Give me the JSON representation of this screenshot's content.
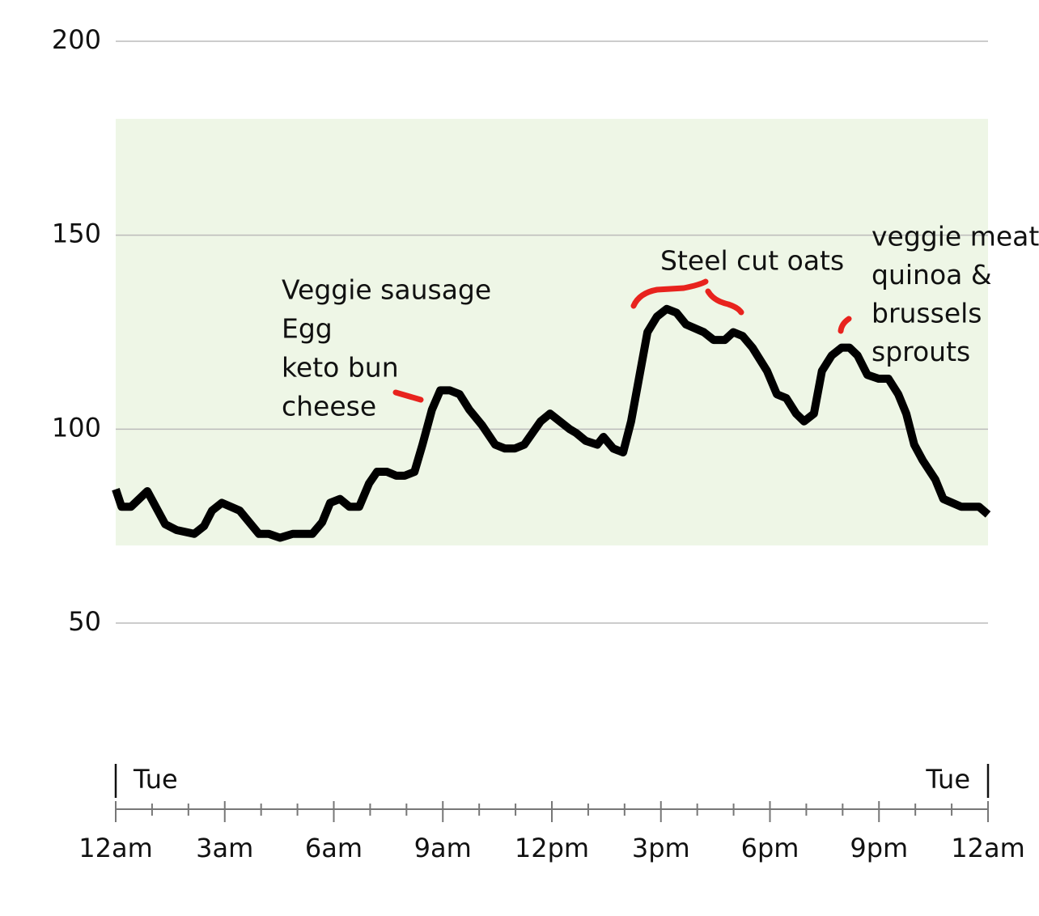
{
  "chart_data": {
    "type": "line",
    "x": [
      0,
      0.16,
      0.42,
      0.87,
      1.36,
      1.67,
      2.16,
      2.43,
      2.65,
      2.92,
      3.41,
      3.94,
      4.21,
      4.52,
      4.87,
      5.41,
      5.68,
      5.9,
      6.17,
      6.43,
      6.7,
      6.97,
      7.19,
      7.46,
      7.72,
      7.95,
      8.22,
      8.44,
      8.7,
      8.93,
      9.19,
      9.46,
      9.73,
      10.08,
      10.44,
      10.71,
      10.98,
      11.24,
      11.69,
      11.95,
      12.49,
      12.67,
      12.93,
      13.25,
      13.42,
      13.69,
      13.96,
      14.18,
      14.63,
      14.89,
      15.16,
      15.43,
      15.69,
      16.18,
      16.45,
      16.76,
      16.99,
      17.25,
      17.52,
      17.92,
      18.19,
      18.45,
      18.72,
      18.94,
      19.21,
      19.43,
      19.7,
      19.97,
      20.19,
      20.41,
      20.68,
      20.99,
      21.26,
      21.53,
      21.75,
      21.97,
      22.2,
      22.55,
      22.77,
      23.26,
      23.75,
      24
    ],
    "values": [
      84.5,
      80,
      80,
      84,
      75.5,
      74,
      73,
      75,
      79,
      81,
      79,
      73,
      73,
      72,
      73,
      73,
      76,
      81,
      82,
      80,
      80,
      86,
      89,
      89,
      88,
      88,
      89,
      96,
      105,
      110,
      110,
      109,
      105,
      101,
      96,
      95,
      95,
      96,
      102,
      104,
      100,
      99,
      97,
      96,
      98,
      95,
      94,
      102,
      125,
      129,
      131,
      130,
      127,
      125,
      123,
      123,
      125,
      124,
      121,
      115,
      109,
      108,
      104,
      102,
      104,
      115,
      119,
      121,
      121,
      119,
      114,
      113,
      113,
      109,
      104,
      96,
      92,
      87,
      82,
      80,
      80,
      78
    ],
    "color": "#000000",
    "target_range": [
      70,
      180
    ],
    "target_color": "#eef6e6",
    "ylim": [
      50,
      200
    ],
    "yticks": [
      50,
      100,
      150,
      200
    ],
    "grid": true,
    "xlim": [
      0,
      24
    ],
    "xticks": [
      {
        "value": 0,
        "label": "12am"
      },
      {
        "value": 3,
        "label": "3am"
      },
      {
        "value": 6,
        "label": "6am"
      },
      {
        "value": 9,
        "label": "9am"
      },
      {
        "value": 12,
        "label": "12pm"
      },
      {
        "value": 15,
        "label": "3pm"
      },
      {
        "value": 18,
        "label": "6pm"
      },
      {
        "value": 21,
        "label": "9pm"
      },
      {
        "value": 24,
        "label": "12am"
      }
    ],
    "xminor_ticks": [
      1,
      2,
      4,
      5,
      7,
      8,
      10,
      11,
      13,
      14,
      16,
      17,
      19,
      20,
      22,
      23
    ],
    "day_labels": [
      {
        "value": 0,
        "label": "Tue"
      },
      {
        "value": 24,
        "label": "Tue"
      }
    ],
    "annotations": [
      {
        "lines": [
          "Veggie sausage",
          "Egg",
          "keto bun",
          "cheese"
        ]
      },
      {
        "lines": [
          "Steel cut oats"
        ]
      },
      {
        "lines": [
          "veggie meat",
          "quinoa &",
          "brussels",
          "sprouts"
        ]
      }
    ]
  }
}
